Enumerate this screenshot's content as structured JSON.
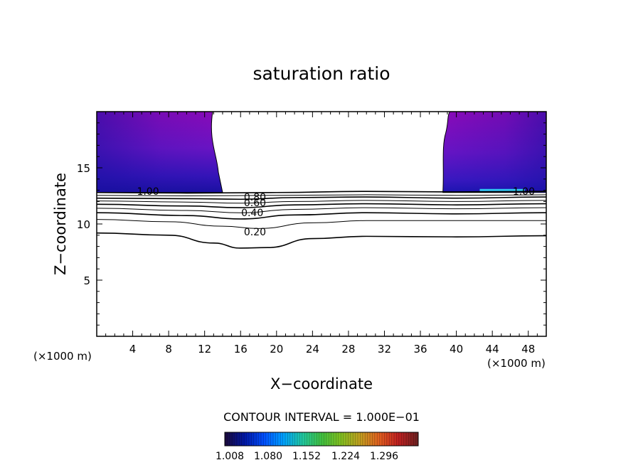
{
  "chart_data": {
    "type": "contour",
    "title": "saturation ratio",
    "xlabel": "X−coordinate",
    "ylabel": "Z−coordinate",
    "x_unit_left": "(×1000 m)",
    "x_unit_right": "(×1000 m)",
    "xlim": [
      0,
      50
    ],
    "ylim": [
      0,
      20
    ],
    "x_ticks": [
      4,
      8,
      12,
      16,
      20,
      24,
      28,
      32,
      36,
      40,
      44,
      48
    ],
    "y_ticks": [
      5,
      10,
      15
    ],
    "contour_interval_text": "CONTOUR INTERVAL = 1.000E−01",
    "contour_labels": [
      {
        "text": "1.00",
        "x": 5.7,
        "z": 12.9
      },
      {
        "text": "0.80",
        "x": 17.6,
        "z": 12.4
      },
      {
        "text": "0.60",
        "x": 17.6,
        "z": 11.9
      },
      {
        "text": "0.40",
        "x": 17.3,
        "z": 11.0
      },
      {
        "text": "0.20",
        "x": 17.6,
        "z": 9.3
      },
      {
        "text": "1.00",
        "x": 47.5,
        "z": 12.9
      }
    ],
    "contours": [
      {
        "value": 1.0,
        "points": [
          [
            0,
            12.8
          ],
          [
            10,
            12.75
          ],
          [
            20,
            12.8
          ],
          [
            30,
            12.9
          ],
          [
            40,
            12.85
          ],
          [
            50,
            12.9
          ]
        ]
      },
      {
        "value": 0.9,
        "points": [
          [
            0,
            12.55
          ],
          [
            10,
            12.5
          ],
          [
            20,
            12.55
          ],
          [
            30,
            12.6
          ],
          [
            40,
            12.55
          ],
          [
            50,
            12.6
          ]
        ]
      },
      {
        "value": 0.8,
        "points": [
          [
            0,
            12.3
          ],
          [
            10,
            12.25
          ],
          [
            16,
            12.2
          ],
          [
            22,
            12.35
          ],
          [
            30,
            12.4
          ],
          [
            40,
            12.3
          ],
          [
            50,
            12.4
          ]
        ]
      },
      {
        "value": 0.7,
        "points": [
          [
            0,
            12.05
          ],
          [
            10,
            11.95
          ],
          [
            16,
            11.85
          ],
          [
            22,
            12.0
          ],
          [
            30,
            12.1
          ],
          [
            40,
            12.0
          ],
          [
            50,
            12.1
          ]
        ]
      },
      {
        "value": 0.6,
        "points": [
          [
            0,
            11.75
          ],
          [
            10,
            11.6
          ],
          [
            16,
            11.45
          ],
          [
            22,
            11.7
          ],
          [
            30,
            11.8
          ],
          [
            40,
            11.7
          ],
          [
            50,
            11.8
          ]
        ]
      },
      {
        "value": 0.5,
        "points": [
          [
            0,
            11.4
          ],
          [
            10,
            11.2
          ],
          [
            16,
            11.0
          ],
          [
            22,
            11.3
          ],
          [
            30,
            11.45
          ],
          [
            40,
            11.35
          ],
          [
            50,
            11.45
          ]
        ]
      },
      {
        "value": 0.4,
        "points": [
          [
            0,
            11.0
          ],
          [
            10,
            10.75
          ],
          [
            16,
            10.45
          ],
          [
            22,
            10.8
          ],
          [
            30,
            11.0
          ],
          [
            40,
            10.9
          ],
          [
            50,
            11.0
          ]
        ]
      },
      {
        "value": 0.3,
        "points": [
          [
            0,
            10.4
          ],
          [
            8,
            10.2
          ],
          [
            14,
            9.8
          ],
          [
            18,
            9.6
          ],
          [
            24,
            10.1
          ],
          [
            30,
            10.3
          ],
          [
            40,
            10.3
          ],
          [
            50,
            10.3
          ]
        ]
      },
      {
        "value": 0.2,
        "points": [
          [
            0,
            9.2
          ],
          [
            8,
            9.0
          ],
          [
            13,
            8.3
          ],
          [
            16,
            7.85
          ],
          [
            19,
            7.9
          ],
          [
            24,
            8.7
          ],
          [
            30,
            8.9
          ],
          [
            40,
            8.85
          ],
          [
            50,
            8.95
          ]
        ]
      }
    ],
    "shaded_regions": [
      {
        "name": "left",
        "x_range": [
          0,
          14
        ]
      },
      {
        "name": "right",
        "x_range": [
          38.5,
          50
        ]
      }
    ],
    "colorbar": {
      "ticks": [
        "1.008",
        "1.080",
        "1.152",
        "1.224",
        "1.296"
      ],
      "colors": [
        "#1a0a40",
        "#0018a8",
        "#0050ff",
        "#00a0ff",
        "#20c8a0",
        "#40c040",
        "#80c020",
        "#c0a020",
        "#e06020",
        "#c02020",
        "#702020"
      ]
    },
    "colors": {
      "shade_light": "#8808b8",
      "shade_mid": "#5a18c8",
      "shade_dark": "#1810a0",
      "highlight": "#30c8f0"
    }
  }
}
